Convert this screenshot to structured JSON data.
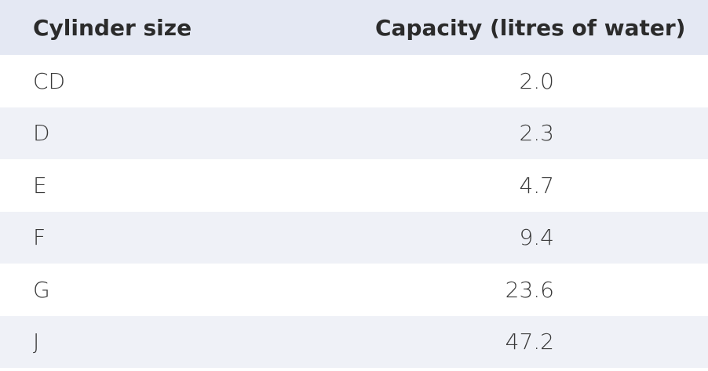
{
  "table": {
    "header": [
      "Cylinder size",
      "Capacity (litres of water)"
    ],
    "rows": [
      [
        "CD",
        "2.0"
      ],
      [
        "D",
        "2.3"
      ],
      [
        "E",
        "4.7"
      ],
      [
        "F",
        "9.4"
      ],
      [
        "G",
        "23.6"
      ],
      [
        "J",
        "47.2"
      ]
    ]
  }
}
